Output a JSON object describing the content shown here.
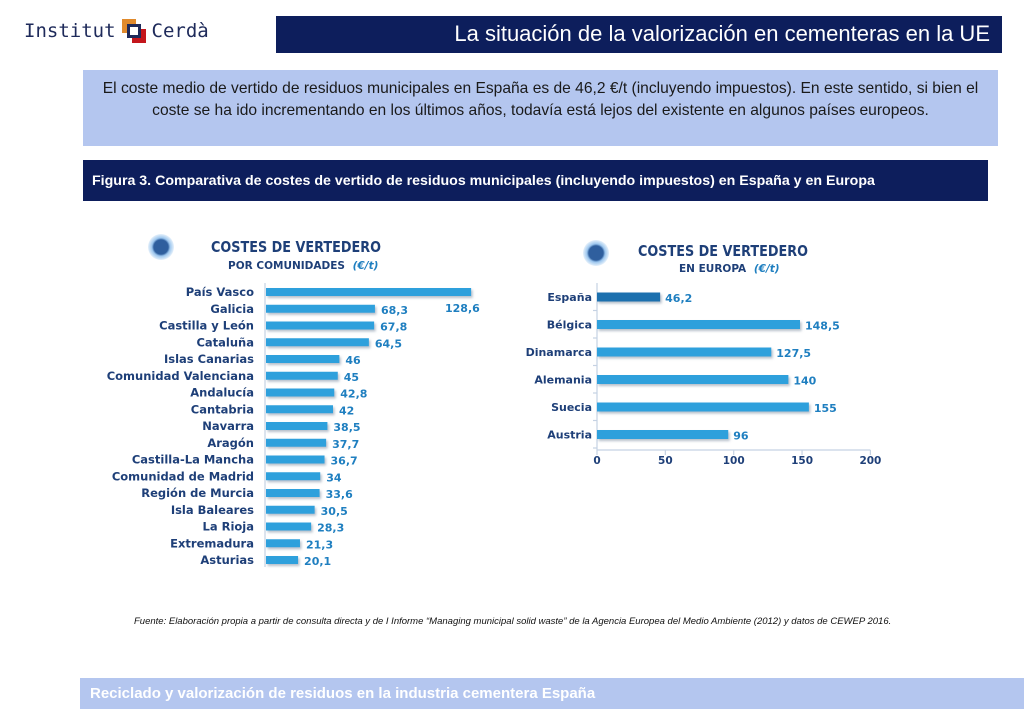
{
  "logo": {
    "left": "Institut",
    "right": "Cerdà"
  },
  "header": {
    "title": "La situación de la valorización en cementeras en la UE"
  },
  "intro": {
    "text": "El coste medio de vertido de residuos municipales en España es de 46,2 €/t (incluyendo impuestos). En este sentido, si bien el coste se ha ido incrementando en los últimos años, todavía está lejos del existente en algunos países europeos."
  },
  "figure": {
    "caption": "Figura 3. Comparativa de costes de vertido de residuos municipales (incluyendo impuestos) en España y en Europa"
  },
  "source": {
    "text": "Fuente: Elaboración propia a partir de consulta directa y de I Informe “Managing municipal solid waste” de la Agencia Europea del Medio Ambiente (2012) y datos de CEWEP 2016."
  },
  "footer": {
    "text": "Reciclado y valorización de residuos en la industria cementera España"
  },
  "colors": {
    "navy": "#0d1e5c",
    "light_blue": "#b4c6ef",
    "bar": "#2da0dc",
    "bar_highlight": "#1f6fae",
    "label": "#1e3f78",
    "value": "#1f7fc0"
  },
  "chart_data": [
    {
      "type": "bar",
      "orientation": "horizontal",
      "title": "COSTES DE VERTEDERO",
      "subtitle": "POR COMUNIDADES",
      "unit": "(€/t)",
      "categories": [
        "País Vasco",
        "Galicia",
        "Castilla y León",
        "Cataluña",
        "Islas Canarias",
        "Comunidad Valenciana",
        "Andalucía",
        "Cantabria",
        "Navarra",
        "Aragón",
        "Castilla-La Mancha",
        "Comunidad de Madrid",
        "Región de Murcia",
        "Isla Baleares",
        "La Rioja",
        "Extremadura",
        "Asturias"
      ],
      "values": [
        128.6,
        68.3,
        67.8,
        64.5,
        46,
        45,
        42.8,
        42,
        38.5,
        37.7,
        36.7,
        34,
        33.6,
        30.5,
        28.3,
        21.3,
        20.1
      ],
      "value_labels": [
        "128,6",
        "68,3",
        "67,8",
        "64,5",
        "46",
        "45",
        "42,8",
        "42",
        "38,5",
        "37,7",
        "36,7",
        "34",
        "33,6",
        "30,5",
        "28,3",
        "21,3",
        "20,1"
      ]
    },
    {
      "type": "bar",
      "orientation": "horizontal",
      "title": "COSTES DE VERTEDERO",
      "subtitle": "EN EUROPA",
      "unit": "(€/t)",
      "categories": [
        "España",
        "Bélgica",
        "Dinamarca",
        "Alemania",
        "Suecia",
        "Austria"
      ],
      "values": [
        46.2,
        148.5,
        127.5,
        140,
        155,
        96
      ],
      "value_labels": [
        "46,2",
        "148,5",
        "127,5",
        "140",
        "155",
        "96"
      ],
      "highlight": "España",
      "xlim": [
        0,
        200
      ],
      "xticks": [
        "0",
        "50",
        "100",
        "150",
        "200"
      ]
    }
  ]
}
